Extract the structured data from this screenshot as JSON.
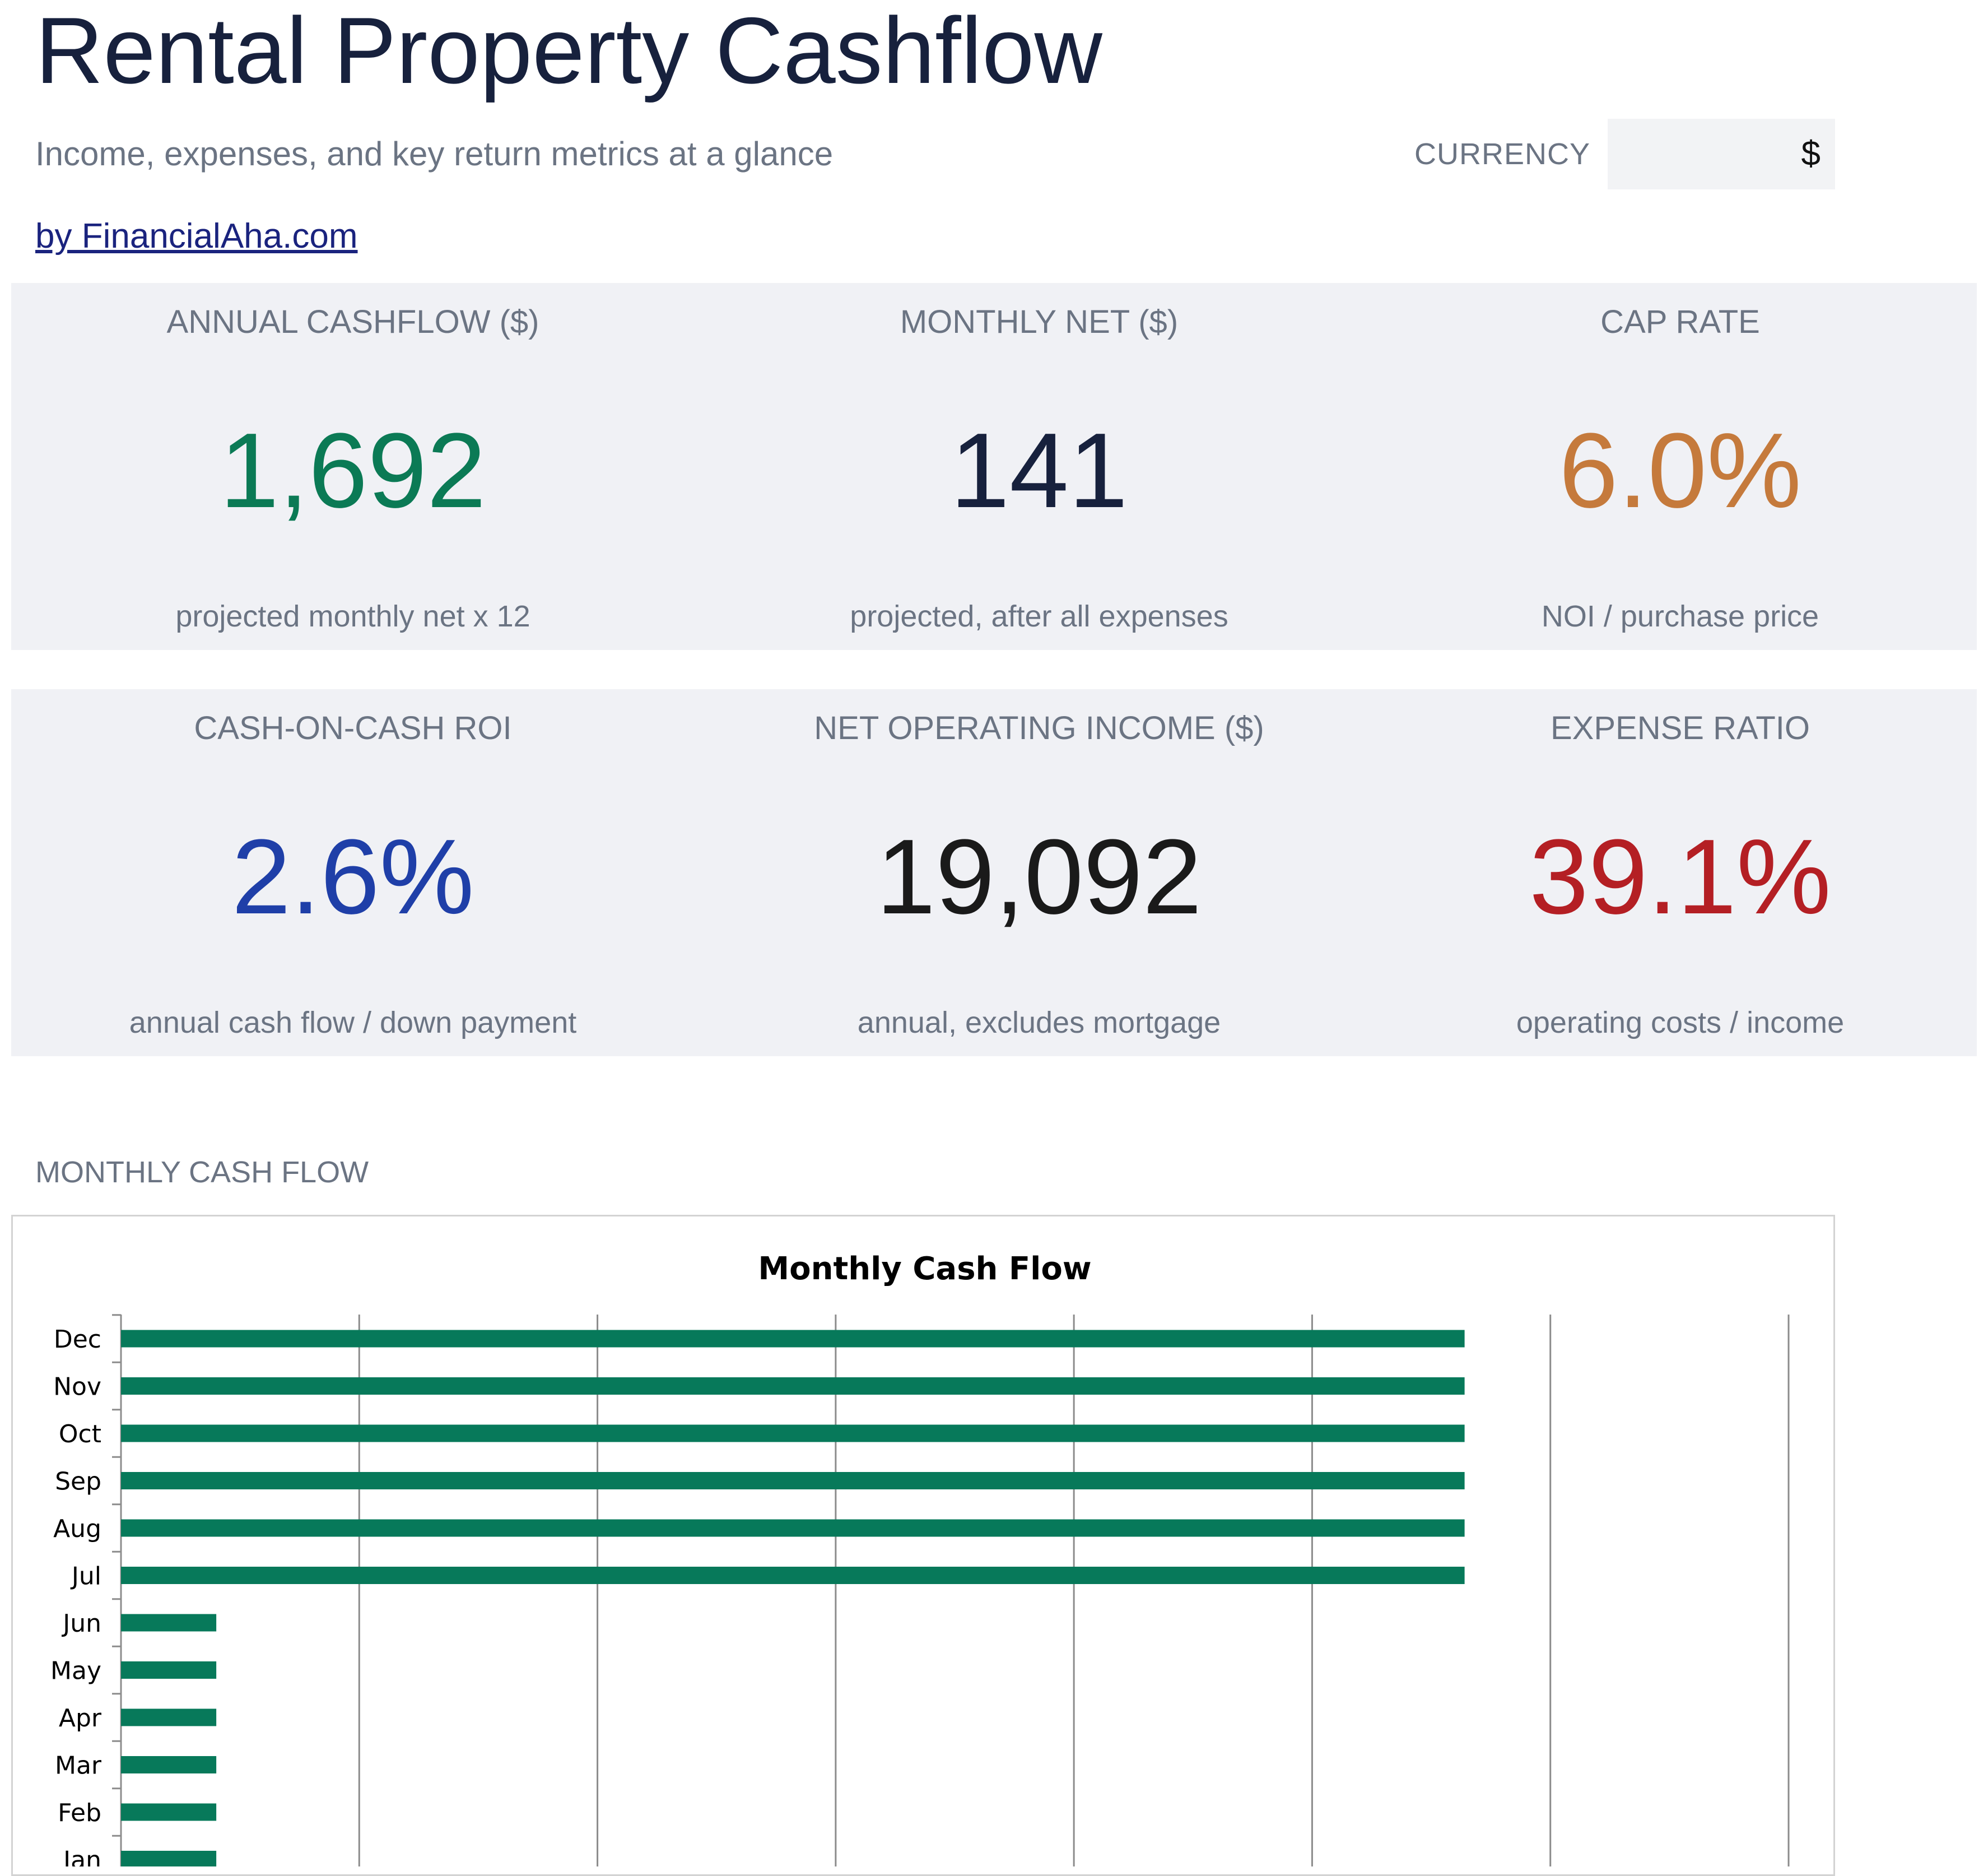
{
  "header": {
    "title": "Rental Property Cashflow",
    "subtitle": "Income, expenses, and key return metrics at a glance",
    "currency_label": "CURRENCY",
    "currency_value": "$",
    "credit_link": "by FinancialAha.com"
  },
  "kpis": {
    "annual_cashflow": {
      "label": "ANNUAL CASHFLOW ($)",
      "value": "1,692",
      "note": "projected monthly net x 12",
      "color": "#0b7a55"
    },
    "monthly_net": {
      "label": "MONTHLY NET ($)",
      "value": "141",
      "note": "projected, after all expenses",
      "color": "#17213d"
    },
    "cap_rate": {
      "label": "CAP RATE",
      "value": "6.0%",
      "note": "NOI / purchase price",
      "color": "#c57a3c"
    },
    "cash_on_cash": {
      "label": "CASH-ON-CASH ROI",
      "value": "2.6%",
      "note": "annual cash flow / down payment",
      "color": "#1f3fa8"
    },
    "noi": {
      "label": "NET OPERATING INCOME ($)",
      "value": "19,092",
      "note": "annual, excludes mortgage",
      "color": "#1a1a1a"
    },
    "expense_ratio": {
      "label": "EXPENSE RATIO",
      "value": "39.1%",
      "note": "operating costs / income",
      "color": "#b41f24"
    }
  },
  "section": {
    "monthly_label": "MONTHLY CASH FLOW"
  },
  "colors": {
    "bar": "#07795a",
    "band": "#f0f1f5",
    "muted_text": "#6b7483"
  },
  "chart_data": {
    "type": "bar",
    "orientation": "horizontal",
    "title": "Monthly Cash Flow",
    "xlabel": "",
    "ylabel": "",
    "categories": [
      "Dec",
      "Nov",
      "Oct",
      "Sep",
      "Aug",
      "Jul",
      "Jun",
      "May",
      "Apr",
      "Mar",
      "Feb",
      "Jan"
    ],
    "values": [
      282,
      282,
      282,
      282,
      282,
      282,
      20,
      20,
      20,
      20,
      20,
      20
    ],
    "xlim": [
      0,
      350
    ],
    "grid": true,
    "legend": "none",
    "bar_color": "#07795a"
  }
}
